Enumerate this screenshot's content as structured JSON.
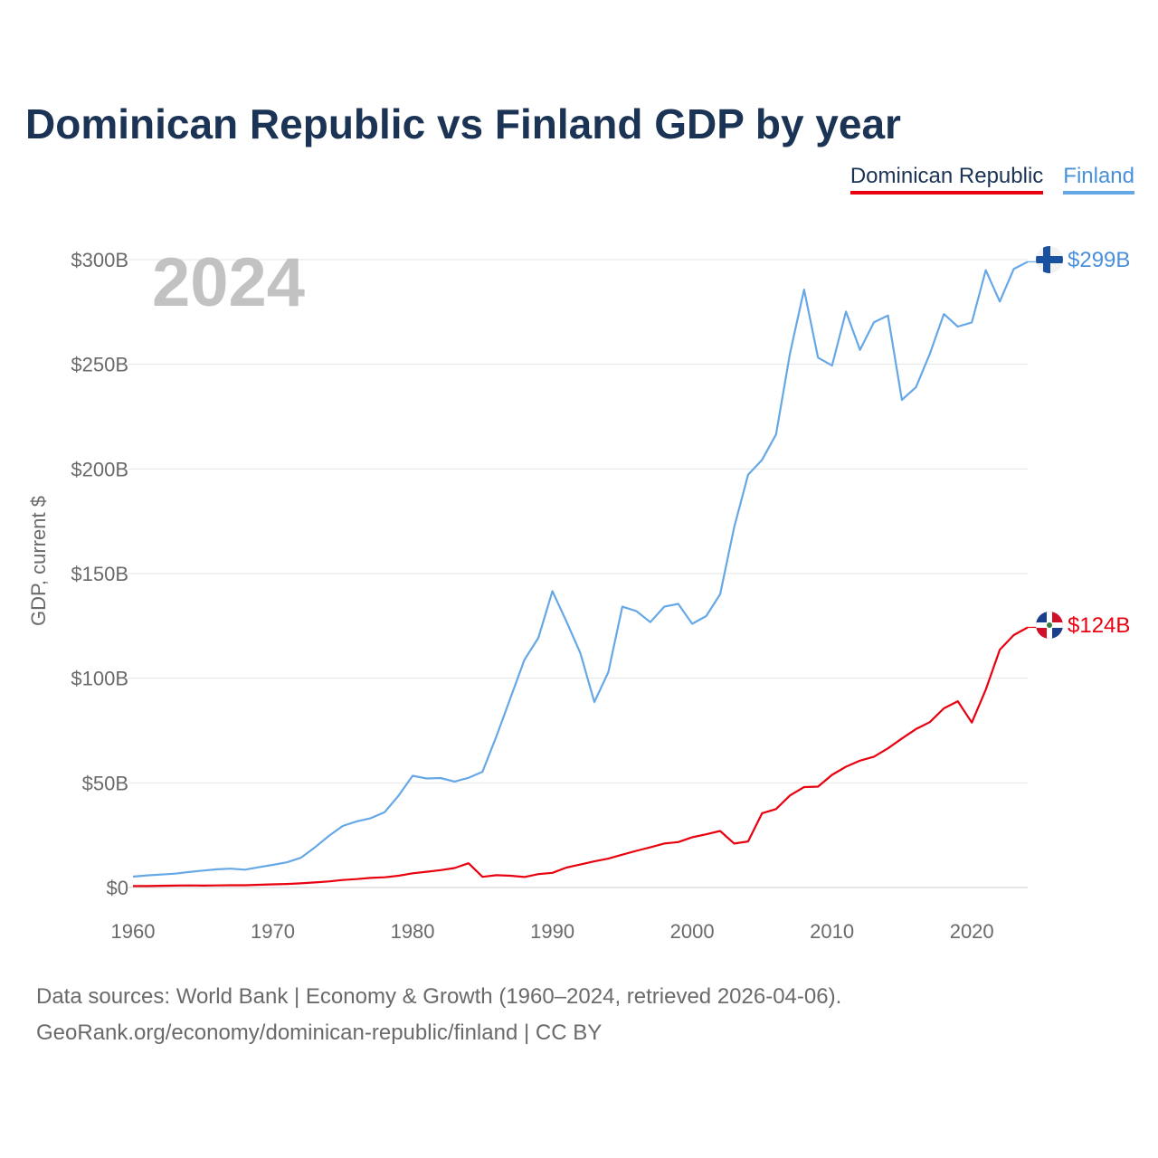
{
  "chart_data": {
    "type": "line",
    "title": "Dominican Republic vs Finland GDP by year",
    "ylabel": "GDP, current $",
    "xlabel": "",
    "year_label": "2024",
    "xlim": [
      1960,
      2024
    ],
    "ylim": [
      0,
      300
    ],
    "x_ticks": [
      1960,
      1970,
      1980,
      1990,
      2000,
      2010,
      2020
    ],
    "y_ticks": [
      {
        "value": 0,
        "label": "$0"
      },
      {
        "value": 50,
        "label": "$50B"
      },
      {
        "value": 100,
        "label": "$100B"
      },
      {
        "value": 150,
        "label": "$150B"
      },
      {
        "value": 200,
        "label": "$200B"
      },
      {
        "value": 250,
        "label": "$250B"
      },
      {
        "value": 300,
        "label": "$300B"
      }
    ],
    "x": [
      1960,
      1961,
      1962,
      1963,
      1964,
      1965,
      1966,
      1967,
      1968,
      1969,
      1970,
      1971,
      1972,
      1973,
      1974,
      1975,
      1976,
      1977,
      1978,
      1979,
      1980,
      1981,
      1982,
      1983,
      1984,
      1985,
      1986,
      1987,
      1988,
      1989,
      1990,
      1991,
      1992,
      1993,
      1994,
      1995,
      1996,
      1997,
      1998,
      1999,
      2000,
      2001,
      2002,
      2003,
      2004,
      2005,
      2006,
      2007,
      2008,
      2009,
      2010,
      2011,
      2012,
      2013,
      2014,
      2015,
      2016,
      2017,
      2018,
      2019,
      2020,
      2021,
      2022,
      2023,
      2024
    ],
    "series": [
      {
        "name": "Dominican Republic",
        "color": "#e8000f",
        "end_label": "$124B",
        "values": [
          0.7,
          0.7,
          0.8,
          0.9,
          1.0,
          0.9,
          1.0,
          1.1,
          1.1,
          1.3,
          1.5,
          1.7,
          2.0,
          2.4,
          2.9,
          3.6,
          4.0,
          4.6,
          4.9,
          5.6,
          6.8,
          7.5,
          8.3,
          9.3,
          11.6,
          5.1,
          5.9,
          5.6,
          5.0,
          6.4,
          7.0,
          9.5,
          11.0,
          12.5,
          13.8,
          15.7,
          17.5,
          19.2,
          21.0,
          21.7,
          24.0,
          25.4,
          27.0,
          21.0,
          22.0,
          35.5,
          37.5,
          44.0,
          48.0,
          48.2,
          53.8,
          57.7,
          60.6,
          62.5,
          66.5,
          71.2,
          75.7,
          79.0,
          85.6,
          89.0,
          78.8,
          94.5,
          113.6,
          120.6,
          124.3
        ]
      },
      {
        "name": "Finland",
        "color": "#66a8e6",
        "end_label": "$299B",
        "values": [
          5.2,
          5.8,
          6.2,
          6.6,
          7.4,
          8.1,
          8.7,
          9.0,
          8.5,
          9.7,
          10.8,
          12.0,
          14.2,
          19.1,
          24.6,
          29.4,
          31.6,
          33.1,
          36.0,
          43.9,
          53.4,
          52.1,
          52.3,
          50.6,
          52.4,
          55.3,
          72.3,
          90.5,
          108.8,
          119.3,
          141.6,
          127.2,
          112.0,
          88.6,
          102.9,
          134.2,
          132.1,
          126.8,
          134.2,
          135.5,
          126.0,
          129.7,
          140.1,
          172.1,
          197.2,
          204.4,
          216.5,
          255.4,
          285.7,
          253.2,
          249.4,
          275.2,
          256.9,
          270.1,
          273.3,
          233.0,
          239.0,
          255.0,
          274.0,
          268.0,
          270.0,
          295.0,
          280.0,
          295.5,
          299.0
        ]
      }
    ]
  },
  "legend": {
    "items": [
      "Dominican Republic",
      "Finland"
    ]
  },
  "footer": {
    "line1": "Data sources: World Bank | Economy & Growth (1960–2024, retrieved 2026-04-06).",
    "line2": "GeoRank.org/economy/dominican-republic/finland | CC BY"
  }
}
